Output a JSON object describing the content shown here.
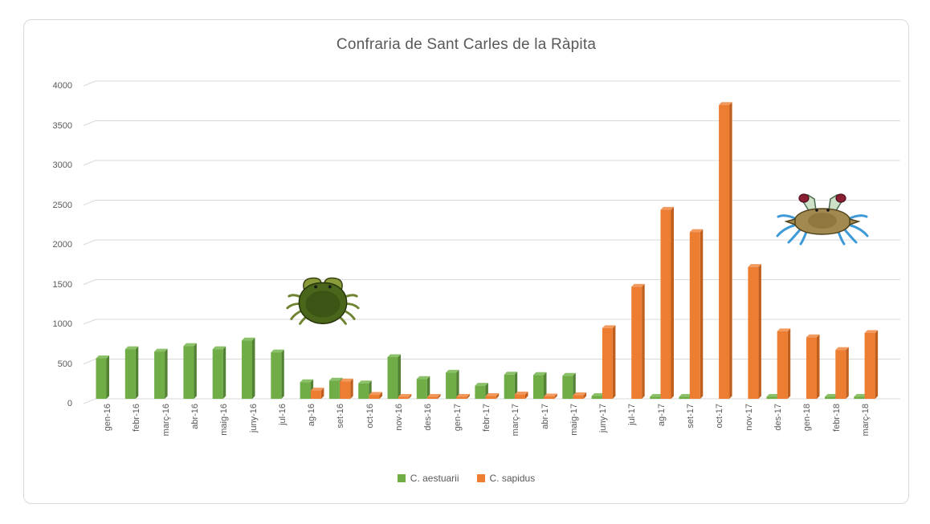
{
  "window": {
    "background": "#ffffff",
    "frame_border_color": "#d9d9d9"
  },
  "images": {
    "green_crab": "green-crab-illustration (Carcinus aestuarii)",
    "blue_crab": "blue-crab-illustration (Callinectes sapidus)"
  },
  "colors": {
    "aestuarii_front": "#70AD47",
    "aestuarii_side": "#548235",
    "aestuarii_top": "#8BC168",
    "sapidus_front": "#ED7D31",
    "sapidus_side": "#C05F1D",
    "sapidus_top": "#F29A5E",
    "gridline": "#D9D9D9",
    "axis_text": "#595959",
    "title_text": "#595959"
  },
  "chart_data": {
    "type": "bar",
    "style": "3d-clustered-column",
    "title": "Confraria de Sant Carles de la Ràpita",
    "xlabel": "",
    "ylabel": "",
    "ylim": [
      0,
      4000
    ],
    "ytick_step": 500,
    "grid": true,
    "legend_position": "bottom",
    "categories": [
      "gen-16",
      "febr-16",
      "març-16",
      "abr-16",
      "maig-16",
      "juny-16",
      "jul-16",
      "ag-16",
      "set-16",
      "oct-16",
      "nov-16",
      "des-16",
      "gen-17",
      "febr-17",
      "març-17",
      "abr-17",
      "maig-17",
      "juny-17",
      "jul-17",
      "ag-17",
      "set-17",
      "oct-17",
      "nov-17",
      "des-17",
      "gen-18",
      "febr-18",
      "març-18"
    ],
    "series": [
      {
        "name": "C. aestuarii",
        "color": "#70AD47",
        "values": [
          510,
          625,
          595,
          665,
          625,
          735,
          585,
          210,
          230,
          195,
          525,
          250,
          330,
          165,
          305,
          300,
          290,
          35,
          0,
          25,
          25,
          0,
          0,
          25,
          0,
          25,
          25
        ]
      },
      {
        "name": "C. sapidus",
        "color": "#ED7D31",
        "values": [
          0,
          0,
          0,
          0,
          0,
          0,
          0,
          105,
          220,
          50,
          25,
          25,
          25,
          35,
          55,
          30,
          45,
          890,
          1410,
          2380,
          2100,
          3700,
          1660,
          850,
          775,
          615,
          830
        ]
      }
    ]
  }
}
